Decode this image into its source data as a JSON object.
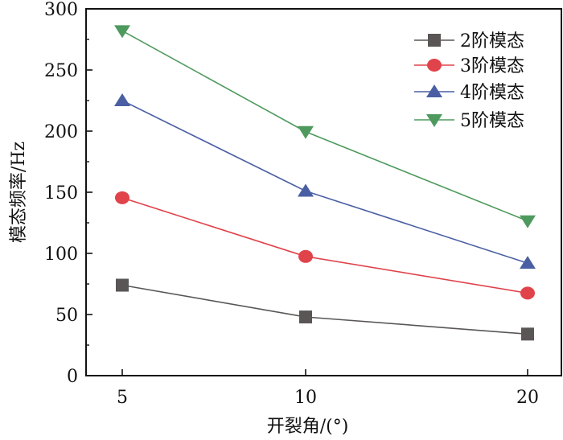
{
  "chart_data": {
    "type": "line",
    "title": "",
    "xlabel": "开裂角/(°)",
    "ylabel": "模态频率/Hz",
    "categories": [
      "5",
      "10",
      "20"
    ],
    "x": [
      5,
      10,
      20
    ],
    "ylim": [
      0,
      300
    ],
    "yticks": [
      0,
      50,
      100,
      150,
      200,
      250,
      300
    ],
    "y_minor_step": 25,
    "grid": false,
    "legend_position": "top-right",
    "series": [
      {
        "name": "2阶模态",
        "marker": "square",
        "color": "#5a5656",
        "values": [
          74,
          48,
          34
        ]
      },
      {
        "name": "3阶模态",
        "marker": "circle",
        "color": "#e0434a",
        "values": [
          145.5,
          97.5,
          67.5
        ]
      },
      {
        "name": "4阶模态",
        "marker": "triangle-up",
        "color": "#4a5fa3",
        "values": [
          225,
          151,
          92
        ]
      },
      {
        "name": "5阶模态",
        "marker": "triangle-down",
        "color": "#4e9a5e",
        "values": [
          282,
          199.5,
          126.5
        ]
      }
    ]
  }
}
